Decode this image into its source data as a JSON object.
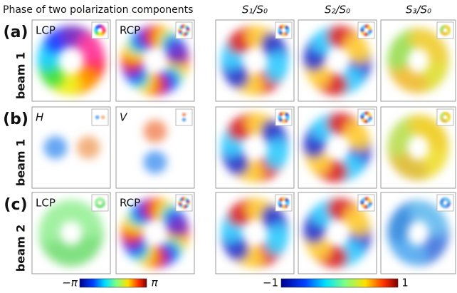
{
  "header": {
    "title": "Phase of two polarization components",
    "columns": [
      "S₁/S₀",
      "S₂/S₀",
      "S₃/S₀"
    ]
  },
  "rows": [
    {
      "tag": "(a)",
      "beam": "beam 1",
      "panels": [
        "LCP",
        "RCP"
      ]
    },
    {
      "tag": "(b)",
      "beam": "beam 1",
      "panels": [
        "H",
        "V"
      ]
    },
    {
      "tag": "(c)",
      "beam": "beam 2",
      "panels": [
        "LCP",
        "RCP"
      ]
    }
  ],
  "colorbars": [
    {
      "min_label": "−π",
      "max_label": "π"
    },
    {
      "min_label": "−1",
      "max_label": "1"
    }
  ]
}
